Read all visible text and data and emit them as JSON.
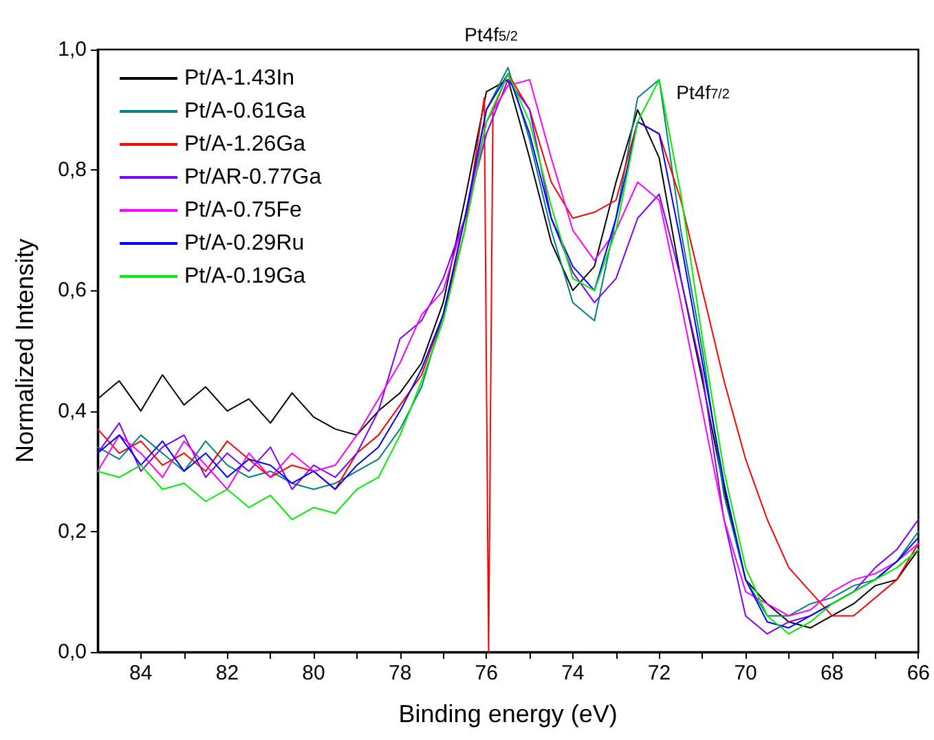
{
  "chart_data": {
    "type": "line",
    "xlabel": "Binding energy (eV)",
    "ylabel": "Normalized Intensity",
    "x": [
      85,
      84.5,
      84,
      83.5,
      83,
      82.5,
      82,
      81.5,
      81,
      80.5,
      80,
      79.5,
      79,
      78.5,
      78,
      77.5,
      77,
      76.5,
      76,
      75.5,
      75,
      74.5,
      74,
      73.5,
      73,
      72.5,
      72,
      71.5,
      71,
      70.5,
      70,
      69.5,
      69,
      68.5,
      68,
      67.5,
      67,
      66.5,
      66
    ],
    "xlim": [
      85,
      66
    ],
    "xticks": [
      84,
      {
        "value": 83,
        "label": null
      },
      82,
      {
        "value": 81,
        "label": null
      },
      80,
      {
        "value": 79,
        "label": null
      },
      78,
      {
        "value": 77,
        "label": null
      },
      76,
      {
        "value": 75,
        "label": null
      },
      74,
      {
        "value": 73,
        "label": null
      },
      72,
      {
        "value": 71,
        "label": null
      },
      70,
      {
        "value": 69,
        "label": null
      },
      68,
      {
        "value": 67,
        "label": null
      },
      66
    ],
    "ylim": [
      0,
      1.0
    ],
    "yticks": [
      {
        "value": 0,
        "label": "0,0"
      },
      {
        "value": 0.2,
        "label": "0,2"
      },
      {
        "value": 0.4,
        "label": "0,4"
      },
      {
        "value": 0.6,
        "label": "0,6"
      },
      {
        "value": 0.8,
        "label": "0,8"
      },
      {
        "value": 1.0,
        "label": "1,0"
      }
    ],
    "grid": false,
    "legend": "top left",
    "marker": "none",
    "line_style": "solid",
    "annotations": [
      "Pt4f$_{5/2}$",
      "Pt4f$_{7/2}$"
    ],
    "series": [
      {
        "name": "Pt/A-1.43In",
        "color": "#000000",
        "values": [
          0.42,
          0.45,
          0.4,
          0.46,
          0.41,
          0.44,
          0.4,
          0.42,
          0.38,
          0.43,
          0.39,
          0.37,
          0.36,
          0.4,
          0.43,
          0.48,
          0.58,
          0.75,
          0.93,
          0.95,
          0.82,
          0.68,
          0.6,
          0.64,
          0.78,
          0.9,
          0.82,
          0.62,
          0.45,
          0.27,
          0.12,
          0.08,
          0.05,
          0.04,
          0.06,
          0.08,
          0.11,
          0.12,
          0.17
        ]
      },
      {
        "name": "Pt/A-0.61Ga",
        "color": "#008080",
        "values": [
          0.34,
          0.32,
          0.36,
          0.33,
          0.3,
          0.35,
          0.31,
          0.29,
          0.3,
          0.28,
          0.27,
          0.28,
          0.3,
          0.32,
          0.37,
          0.44,
          0.56,
          0.72,
          0.9,
          0.97,
          0.85,
          0.7,
          0.58,
          0.55,
          0.72,
          0.92,
          0.95,
          0.7,
          0.5,
          0.26,
          0.12,
          0.06,
          0.06,
          0.08,
          0.09,
          0.11,
          0.12,
          0.15,
          0.2
        ]
      },
      {
        "name": "Pt/A-1.26Ga",
        "color": "#ff0000",
        "x": [
          85,
          84.5,
          84,
          83.5,
          83,
          82.5,
          82,
          81.5,
          81,
          80.5,
          80,
          79.5,
          79,
          78.5,
          78,
          77.5,
          77,
          76.5,
          76.05,
          75.95,
          75.85,
          75.5,
          75,
          74.5,
          74,
          73.5,
          73,
          72.5,
          72,
          71.5,
          71,
          70.5,
          70,
          69.5,
          69,
          68.5,
          68,
          67.5,
          67,
          66.5,
          66
        ],
        "values": [
          0.37,
          0.33,
          0.35,
          0.31,
          0.33,
          0.3,
          0.35,
          0.32,
          0.29,
          0.31,
          0.3,
          0.27,
          0.33,
          0.36,
          0.41,
          0.46,
          0.56,
          0.7,
          0.92,
          0.0,
          0.9,
          0.96,
          0.9,
          0.78,
          0.72,
          0.73,
          0.75,
          0.88,
          0.86,
          0.75,
          0.6,
          0.45,
          0.32,
          0.22,
          0.14,
          0.1,
          0.06,
          0.06,
          0.09,
          0.12,
          0.18
        ]
      },
      {
        "name": "Pt/AR-0.77Ga",
        "color": "#8000ff",
        "values": [
          0.33,
          0.38,
          0.3,
          0.34,
          0.36,
          0.29,
          0.33,
          0.3,
          0.34,
          0.27,
          0.31,
          0.29,
          0.33,
          0.4,
          0.52,
          0.55,
          0.62,
          0.72,
          0.86,
          0.95,
          0.9,
          0.72,
          0.63,
          0.58,
          0.62,
          0.72,
          0.76,
          0.62,
          0.46,
          0.22,
          0.06,
          0.03,
          0.05,
          0.06,
          0.08,
          0.1,
          0.14,
          0.17,
          0.22
        ]
      },
      {
        "name": "Pt/A-0.75Fe",
        "color": "#ff00ff",
        "values": [
          0.3,
          0.36,
          0.33,
          0.29,
          0.35,
          0.31,
          0.27,
          0.33,
          0.29,
          0.33,
          0.3,
          0.31,
          0.36,
          0.42,
          0.48,
          0.56,
          0.6,
          0.72,
          0.88,
          0.94,
          0.95,
          0.82,
          0.7,
          0.65,
          0.7,
          0.78,
          0.75,
          0.58,
          0.4,
          0.22,
          0.1,
          0.08,
          0.06,
          0.07,
          0.1,
          0.12,
          0.13,
          0.15,
          0.18
        ]
      },
      {
        "name": "Pt/A-0.29Ru",
        "color": "#0000ff",
        "values": [
          0.33,
          0.36,
          0.31,
          0.35,
          0.3,
          0.33,
          0.29,
          0.32,
          0.31,
          0.28,
          0.3,
          0.27,
          0.31,
          0.34,
          0.4,
          0.47,
          0.56,
          0.72,
          0.9,
          0.96,
          0.86,
          0.72,
          0.64,
          0.6,
          0.72,
          0.88,
          0.86,
          0.68,
          0.48,
          0.28,
          0.12,
          0.05,
          0.04,
          0.06,
          0.08,
          0.1,
          0.12,
          0.15,
          0.19
        ]
      },
      {
        "name": "Pt/A-0.19Ga",
        "color": "#00ee00",
        "values": [
          0.3,
          0.29,
          0.31,
          0.27,
          0.28,
          0.25,
          0.27,
          0.24,
          0.26,
          0.22,
          0.24,
          0.23,
          0.27,
          0.29,
          0.36,
          0.45,
          0.55,
          0.7,
          0.88,
          0.96,
          0.88,
          0.74,
          0.62,
          0.6,
          0.7,
          0.88,
          0.95,
          0.76,
          0.52,
          0.3,
          0.14,
          0.06,
          0.03,
          0.05,
          0.08,
          0.1,
          0.12,
          0.14,
          0.17
        ]
      }
    ]
  }
}
